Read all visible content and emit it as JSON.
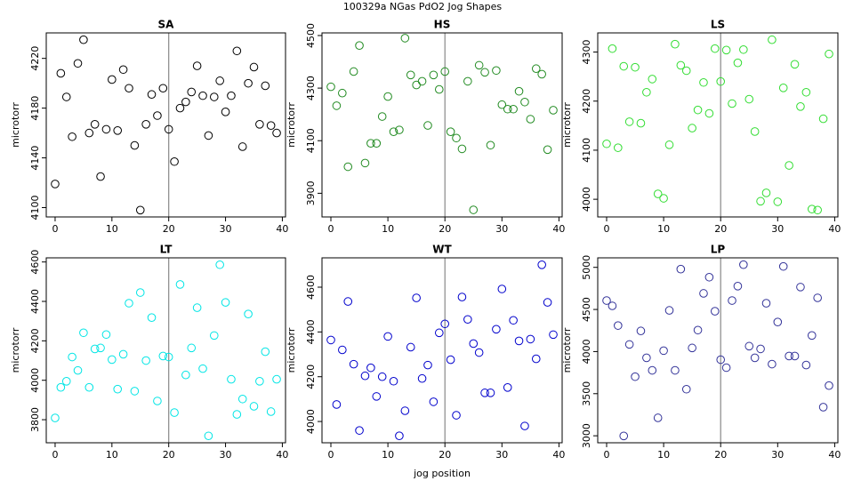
{
  "figure": {
    "title": "100329a   NGas PdO2 Jog Shapes",
    "x_label": "jog position"
  },
  "chart_data": [
    {
      "type": "scatter",
      "title": "SA",
      "y_label": "microtorr",
      "color": "#000000",
      "vline": 20,
      "x": [
        0,
        1,
        2,
        3,
        4,
        5,
        6,
        7,
        8,
        9,
        10,
        11,
        12,
        13,
        14,
        15,
        16,
        17,
        18,
        19,
        20,
        21,
        22,
        23,
        24,
        25,
        26,
        27,
        28,
        29,
        30,
        31,
        32,
        33,
        34,
        35,
        36,
        37,
        38,
        39
      ],
      "values": [
        4119,
        4208,
        4189,
        4157,
        4216,
        4235,
        4160,
        4167,
        4125,
        4163,
        4203,
        4162,
        4211,
        4196,
        4150,
        4098,
        4167,
        4191,
        4174,
        4196,
        4163,
        4137,
        4180,
        4185,
        4193,
        4214,
        4190,
        4158,
        4189,
        4202,
        4177,
        4190,
        4226,
        4149,
        4200,
        4213,
        4167,
        4198,
        4166,
        4160
      ],
      "xlim": [
        -1.56,
        40.56
      ],
      "xticks": [
        0,
        10,
        20,
        30,
        40
      ],
      "ylim": [
        4092.5,
        4240.5
      ],
      "yticks": [
        4100,
        4140,
        4180,
        4220
      ]
    },
    {
      "type": "scatter",
      "title": "HS",
      "y_label": "microtorr",
      "color": "#228b22",
      "vline": 20,
      "x": [
        0,
        1,
        2,
        3,
        4,
        5,
        6,
        7,
        8,
        9,
        10,
        11,
        12,
        13,
        14,
        15,
        16,
        17,
        18,
        19,
        20,
        21,
        22,
        23,
        24,
        25,
        26,
        27,
        28,
        29,
        30,
        31,
        32,
        33,
        34,
        35,
        36,
        37,
        38,
        39
      ],
      "values": [
        4305,
        4233,
        4281,
        4001,
        4363,
        4462,
        4015,
        4090,
        4090,
        4192,
        4268,
        4134,
        4141,
        4490,
        4350,
        4312,
        4326,
        4158,
        4350,
        4295,
        4363,
        4134,
        4110,
        4069,
        4326,
        3837,
        4387,
        4360,
        4083,
        4367,
        4237,
        4220,
        4220,
        4288,
        4247,
        4182,
        4374,
        4353,
        4066,
        4216
      ],
      "xlim": [
        -1.56,
        40.56
      ],
      "xticks": [
        0,
        10,
        20,
        30,
        40
      ],
      "ylim": [
        3810,
        4510
      ],
      "yticks": [
        3900,
        4100,
        4300,
        4500
      ]
    },
    {
      "type": "scatter",
      "title": "LS",
      "y_label": "microtorr",
      "color": "#33dd33",
      "vline": 20,
      "x": [
        0,
        1,
        2,
        3,
        4,
        5,
        6,
        7,
        8,
        9,
        10,
        11,
        12,
        13,
        14,
        15,
        16,
        17,
        18,
        19,
        20,
        21,
        22,
        23,
        24,
        25,
        26,
        27,
        28,
        29,
        30,
        31,
        32,
        33,
        34,
        35,
        36,
        37,
        38,
        39
      ],
      "values": [
        4113,
        4307,
        4105,
        4271,
        4158,
        4269,
        4155,
        4218,
        4245,
        4011,
        4002,
        4111,
        4316,
        4273,
        4262,
        4145,
        4182,
        4238,
        4175,
        4307,
        4240,
        4304,
        4195,
        4278,
        4305,
        4204,
        4138,
        3996,
        4013,
        4325,
        3995,
        4227,
        4069,
        4275,
        4189,
        4218,
        3980,
        3978,
        4164,
        4296
      ],
      "xlim": [
        -1.56,
        40.56
      ],
      "xticks": [
        0,
        10,
        20,
        30,
        40
      ],
      "ylim": [
        3964,
        4339
      ],
      "yticks": [
        4000,
        4100,
        4200,
        4300
      ]
    },
    {
      "type": "scatter",
      "title": "LT",
      "y_label": "microtorr",
      "color": "#00e5e5",
      "vline": 20,
      "x": [
        0,
        1,
        2,
        3,
        4,
        5,
        6,
        7,
        8,
        9,
        10,
        11,
        12,
        13,
        14,
        15,
        16,
        17,
        18,
        19,
        20,
        21,
        22,
        23,
        24,
        25,
        26,
        27,
        28,
        29,
        30,
        31,
        32,
        33,
        34,
        35,
        36,
        37,
        38,
        39
      ],
      "values": [
        3809,
        3964,
        3995,
        4118,
        4050,
        4241,
        3964,
        4159,
        4164,
        4232,
        4105,
        3955,
        4132,
        4391,
        3945,
        4445,
        4100,
        4318,
        3895,
        4123,
        4118,
        3836,
        4486,
        4027,
        4164,
        4368,
        4059,
        3718,
        4227,
        4586,
        4395,
        4005,
        3827,
        3905,
        4336,
        3868,
        3995,
        4145,
        3841,
        4005
      ],
      "xlim": [
        -1.56,
        40.56
      ],
      "xticks": [
        0,
        10,
        20,
        30,
        40
      ],
      "ylim": [
        3683,
        4621
      ],
      "yticks": [
        3800,
        4000,
        4200,
        4400,
        4600
      ]
    },
    {
      "type": "scatter",
      "title": "WT",
      "y_label": "microtorr",
      "color": "#0000cc",
      "vline": 20,
      "x": [
        0,
        1,
        2,
        3,
        4,
        5,
        6,
        7,
        8,
        9,
        10,
        11,
        12,
        13,
        14,
        15,
        16,
        17,
        18,
        19,
        20,
        21,
        22,
        23,
        24,
        25,
        26,
        27,
        28,
        29,
        30,
        31,
        32,
        33,
        34,
        35,
        36,
        37,
        38,
        39
      ],
      "values": [
        4364,
        4076,
        4320,
        4536,
        4256,
        3960,
        4204,
        4240,
        4112,
        4200,
        4380,
        4180,
        3936,
        4048,
        4332,
        4552,
        4192,
        4252,
        4088,
        4396,
        4436,
        4276,
        4028,
        4556,
        4456,
        4348,
        4308,
        4128,
        4128,
        4412,
        4592,
        4152,
        4452,
        4360,
        3980,
        4368,
        4280,
        4700,
        4532,
        4388
      ],
      "xlim": [
        -1.56,
        40.56
      ],
      "xticks": [
        0,
        10,
        20,
        30,
        40
      ],
      "ylim": [
        3905,
        4731
      ],
      "yticks": [
        4000,
        4200,
        4400,
        4600
      ]
    },
    {
      "type": "scatter",
      "title": "LP",
      "y_label": "microtorr",
      "color": "#333399",
      "vline": 20,
      "x": [
        0,
        1,
        2,
        3,
        4,
        5,
        6,
        7,
        8,
        9,
        10,
        11,
        12,
        13,
        14,
        15,
        16,
        17,
        18,
        19,
        20,
        21,
        22,
        23,
        24,
        25,
        26,
        27,
        28,
        29,
        30,
        31,
        32,
        33,
        34,
        35,
        36,
        37,
        38,
        39
      ],
      "values": [
        4606,
        4543,
        4309,
        2998,
        4085,
        3702,
        4245,
        3926,
        3777,
        3213,
        4011,
        4489,
        3777,
        4979,
        3553,
        4043,
        4255,
        4691,
        4883,
        4479,
        3904,
        3809,
        4606,
        4777,
        5032,
        4064,
        3926,
        4032,
        4574,
        3851,
        4351,
        5011,
        3947,
        3947,
        4766,
        3840,
        4191,
        4638,
        3340,
        3596
      ],
      "xlim": [
        -1.56,
        40.56
      ],
      "xticks": [
        0,
        10,
        20,
        30,
        40
      ],
      "ylim": [
        2917,
        5113
      ],
      "yticks": [
        3000,
        3500,
        4000,
        4500,
        5000
      ]
    }
  ]
}
